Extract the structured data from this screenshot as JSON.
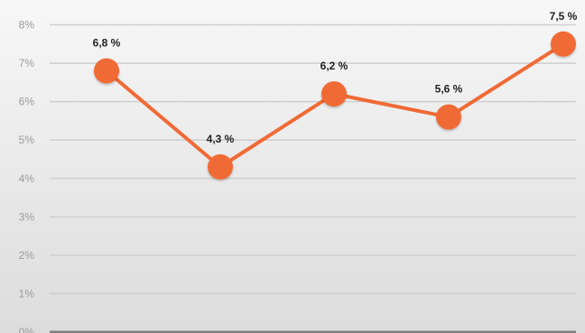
{
  "chart_data": {
    "type": "line",
    "title": "",
    "xlabel": "",
    "ylabel": "",
    "categories": [
      "",
      "",
      "",
      "",
      ""
    ],
    "series": [
      {
        "values": [
          6.8,
          4.3,
          6.2,
          5.6,
          7.5
        ]
      }
    ],
    "data_labels": [
      "6,8 %",
      "4,3 %",
      "6,2 %",
      "5,6 %",
      "7,5 %"
    ],
    "y_ticks": [
      0,
      1,
      2,
      3,
      4,
      5,
      6,
      7,
      8
    ],
    "y_tick_labels": [
      "0%",
      "1%",
      "2%",
      "3%",
      "4%",
      "5%",
      "6%",
      "7%",
      "8%"
    ],
    "ylim": [
      0,
      8
    ],
    "grid": true,
    "legend": "none"
  },
  "colors": {
    "line": "#f06a35",
    "marker": "#f06a35",
    "grid": "#cfcfcf",
    "baseline": "#7f7f7f",
    "plot_bg_light": "#f7f7f7",
    "plot_bg_dark": "#dcdcdc"
  }
}
